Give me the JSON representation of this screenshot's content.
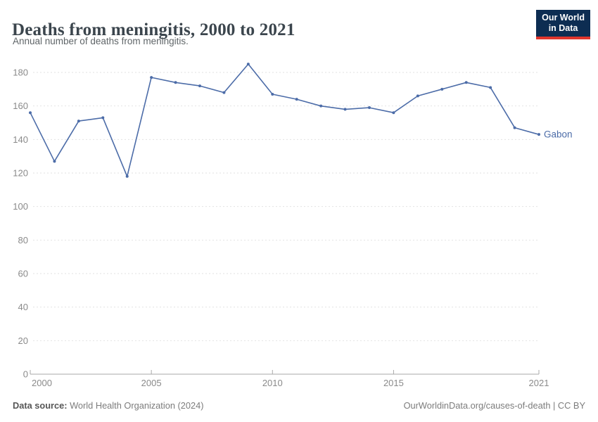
{
  "header": {
    "title": "Deaths from meningitis, 2000 to 2021",
    "subtitle": "Annual number of deaths from meningitis.",
    "logo": {
      "line1": "Our World",
      "line2": "in Data"
    }
  },
  "chart_data": {
    "type": "line",
    "title": "Deaths from meningitis, 2000 to 2021",
    "subtitle": "Annual number of deaths from meningitis.",
    "x": [
      2000,
      2001,
      2002,
      2003,
      2004,
      2005,
      2006,
      2007,
      2008,
      2009,
      2010,
      2011,
      2012,
      2013,
      2014,
      2015,
      2016,
      2017,
      2018,
      2019,
      2020,
      2021
    ],
    "series": [
      {
        "name": "Gabon",
        "values": [
          156,
          127,
          151,
          153,
          118,
          177,
          174,
          172,
          168,
          185,
          167,
          164,
          160,
          158,
          159,
          156,
          166,
          170,
          174,
          171,
          147,
          143
        ],
        "color": "#4c6ca8"
      }
    ],
    "xlabel": "",
    "ylabel": "",
    "xticks": [
      2000,
      2005,
      2010,
      2015,
      2021
    ],
    "yticks": [
      0,
      20,
      40,
      60,
      80,
      100,
      120,
      140,
      160,
      180
    ],
    "ylim": [
      0,
      180
    ],
    "xlim": [
      2000,
      2021
    ],
    "grid": "horizontal-dashed",
    "legend": "entity-label-at-line-end"
  },
  "colors": {
    "line": "#4c6ca8",
    "gridline": "#e2e2e2",
    "axis": "#a9a9a9",
    "tick_label": "#8a8a8a",
    "logo_bg": "#0d2d52",
    "logo_bar": "#e0362d"
  },
  "footer": {
    "source_label": "Data source:",
    "source_text": " World Health Organization (2024)",
    "credit": "OurWorldinData.org/causes-of-death | CC BY"
  }
}
